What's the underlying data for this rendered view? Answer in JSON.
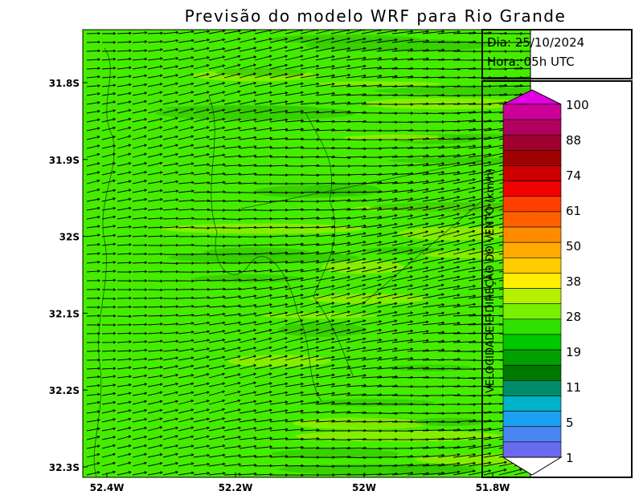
{
  "map": {
    "title": "Previsão do modelo WRF para Rio Grande",
    "lat_labels": [
      "31.8S",
      "31.9S",
      "32S",
      "32.1S",
      "32.2S",
      "32.3S"
    ],
    "lon_labels": [
      "52.4W",
      "52.2W",
      "52W",
      "51.8W"
    ],
    "info": {
      "date": "Dia: 25/10/2024",
      "hour": "Hora: 05h UTC"
    },
    "colorbar": {
      "title": "VELOCIDADE E DIREÇÃO DO VENTO (km/h)",
      "labels": [
        "100",
        "88",
        "74",
        "61",
        "50",
        "38",
        "28",
        "19",
        "11",
        "5",
        "1"
      ],
      "top_color": "#e000e0",
      "colors": [
        "#cc0099",
        "#b00060",
        "#a00030",
        "#a00000",
        "#cc0000",
        "#f00000",
        "#ff4000",
        "#ff6000",
        "#ff8c00",
        "#ffaa00",
        "#ffcc00",
        "#ffee00",
        "#b4f000",
        "#78f000",
        "#30e000",
        "#00c800",
        "#00a000",
        "#007800",
        "#008c6a",
        "#00b4c8",
        "#1ea0f0",
        "#4a86f0",
        "#6a6af0"
      ]
    }
  }
}
